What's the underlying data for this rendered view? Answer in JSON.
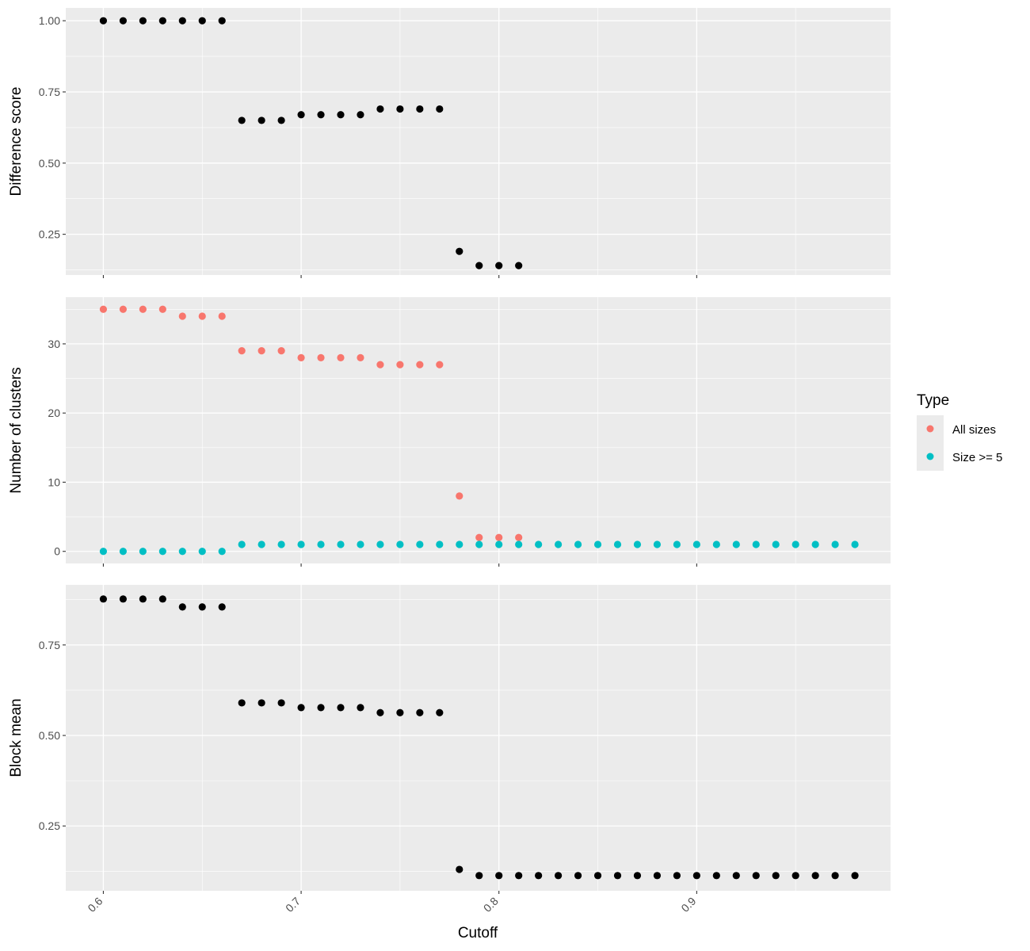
{
  "chart_data": {
    "type": "scatter",
    "xlabel": "Cutoff",
    "x_ticks": [
      "0.6",
      "0.7",
      "0.8",
      "0.9"
    ],
    "x_tick_values": [
      0.6,
      0.7,
      0.8,
      0.9
    ],
    "xlim": [
      0.581,
      0.998
    ],
    "legend": {
      "title": "Type",
      "position": "right",
      "entries": [
        {
          "label": "All sizes",
          "color": "#F8766D"
        },
        {
          "label": "Size >= 5",
          "color": "#00BFC4"
        }
      ]
    },
    "panels": [
      {
        "ylabel": "Difference score",
        "ylim": [
          0.107,
          1.045
        ],
        "y_ticks": [
          "0.25",
          "0.50",
          "0.75",
          "1.00"
        ],
        "y_tick_values": [
          0.25,
          0.5,
          0.75,
          1.0
        ],
        "series": [
          {
            "color": "#000000",
            "x": [
              0.6,
              0.61,
              0.62,
              0.63,
              0.64,
              0.65,
              0.66,
              0.67,
              0.68,
              0.69,
              0.7,
              0.71,
              0.72,
              0.73,
              0.74,
              0.75,
              0.76,
              0.77,
              0.78,
              0.79,
              0.8,
              0.81
            ],
            "y": [
              1.0,
              1.0,
              1.0,
              1.0,
              1.0,
              1.0,
              1.0,
              0.65,
              0.65,
              0.65,
              0.67,
              0.67,
              0.67,
              0.67,
              0.69,
              0.69,
              0.69,
              0.69,
              0.19,
              0.14,
              0.14,
              0.14
            ]
          }
        ]
      },
      {
        "ylabel": "Number of clusters",
        "ylim": [
          -1.75,
          36.75
        ],
        "y_ticks": [
          "0",
          "10",
          "20",
          "30"
        ],
        "y_tick_values": [
          0,
          10,
          20,
          30
        ],
        "series": [
          {
            "name": "All sizes",
            "color": "#F8766D",
            "x": [
              0.6,
              0.61,
              0.62,
              0.63,
              0.64,
              0.65,
              0.66,
              0.67,
              0.68,
              0.69,
              0.7,
              0.71,
              0.72,
              0.73,
              0.74,
              0.75,
              0.76,
              0.77,
              0.78,
              0.79,
              0.8,
              0.81
            ],
            "y": [
              35,
              35,
              35,
              35,
              34,
              34,
              34,
              29,
              29,
              29,
              28,
              28,
              28,
              28,
              27,
              27,
              27,
              27,
              8,
              2,
              2,
              2
            ]
          },
          {
            "name": "Size >= 5",
            "color": "#00BFC4",
            "x": [
              0.6,
              0.61,
              0.62,
              0.63,
              0.64,
              0.65,
              0.66,
              0.67,
              0.68,
              0.69,
              0.7,
              0.71,
              0.72,
              0.73,
              0.74,
              0.75,
              0.76,
              0.77,
              0.78,
              0.79,
              0.8,
              0.81,
              0.82,
              0.83,
              0.84,
              0.85,
              0.86,
              0.87,
              0.88,
              0.89,
              0.9,
              0.91,
              0.92,
              0.93,
              0.94,
              0.95,
              0.96,
              0.97,
              0.98
            ],
            "y": [
              0,
              0,
              0,
              0,
              0,
              0,
              0,
              1,
              1,
              1,
              1,
              1,
              1,
              1,
              1,
              1,
              1,
              1,
              1,
              1,
              1,
              1,
              1,
              1,
              1,
              1,
              1,
              1,
              1,
              1,
              1,
              1,
              1,
              1,
              1,
              1,
              1,
              1,
              1
            ]
          }
        ]
      },
      {
        "ylabel": "Block mean",
        "ylim": [
          0.071,
          0.916
        ],
        "y_ticks": [
          "0.25",
          "0.50",
          "0.75"
        ],
        "y_tick_values": [
          0.25,
          0.5,
          0.75
        ],
        "series": [
          {
            "color": "#000000",
            "x": [
              0.6,
              0.61,
              0.62,
              0.63,
              0.64,
              0.65,
              0.66,
              0.67,
              0.68,
              0.69,
              0.7,
              0.71,
              0.72,
              0.73,
              0.74,
              0.75,
              0.76,
              0.77,
              0.78,
              0.79,
              0.8,
              0.81,
              0.82,
              0.83,
              0.84,
              0.85,
              0.86,
              0.87,
              0.88,
              0.89,
              0.9,
              0.91,
              0.92,
              0.93,
              0.94,
              0.95,
              0.96,
              0.97,
              0.98
            ],
            "y": [
              0.877,
              0.877,
              0.877,
              0.877,
              0.855,
              0.855,
              0.855,
              0.59,
              0.59,
              0.59,
              0.577,
              0.577,
              0.577,
              0.577,
              0.563,
              0.563,
              0.563,
              0.563,
              0.13,
              0.113,
              0.113,
              0.113,
              0.113,
              0.113,
              0.113,
              0.113,
              0.113,
              0.113,
              0.113,
              0.113,
              0.113,
              0.113,
              0.113,
              0.113,
              0.113,
              0.113,
              0.113,
              0.113,
              0.113
            ]
          }
        ]
      }
    ]
  }
}
